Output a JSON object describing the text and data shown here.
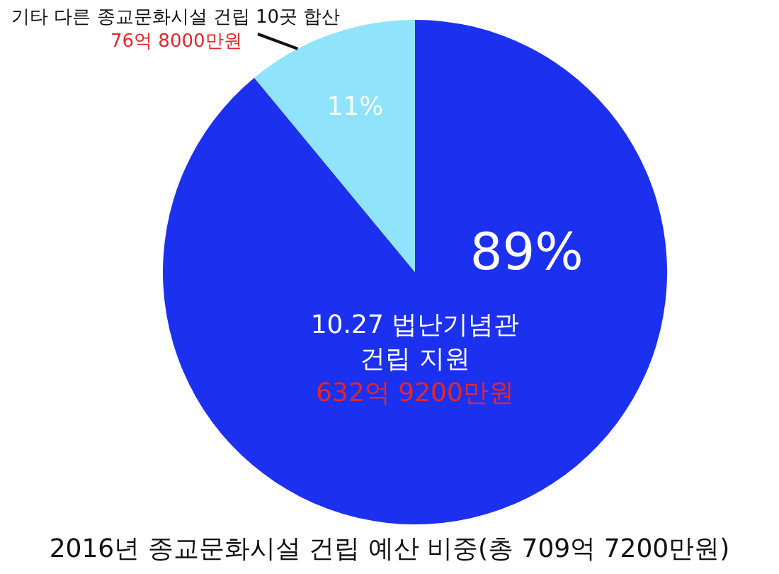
{
  "chart_data": {
    "type": "pie",
    "title": "2016년 종교문화시설 건립 예산 비중(총 709억 7200만원)",
    "categories": [
      "10.27 법난기념관 건립 지원",
      "기타 다른 종교문화시설 건립 10곳 합산"
    ],
    "values": [
      89,
      11
    ],
    "colors": [
      "#1c30f0",
      "#8fe3fa"
    ],
    "value_labels": [
      "89%",
      "11%"
    ],
    "annotations": [
      "632억 9200만원",
      "76억 8000만원"
    ]
  }
}
